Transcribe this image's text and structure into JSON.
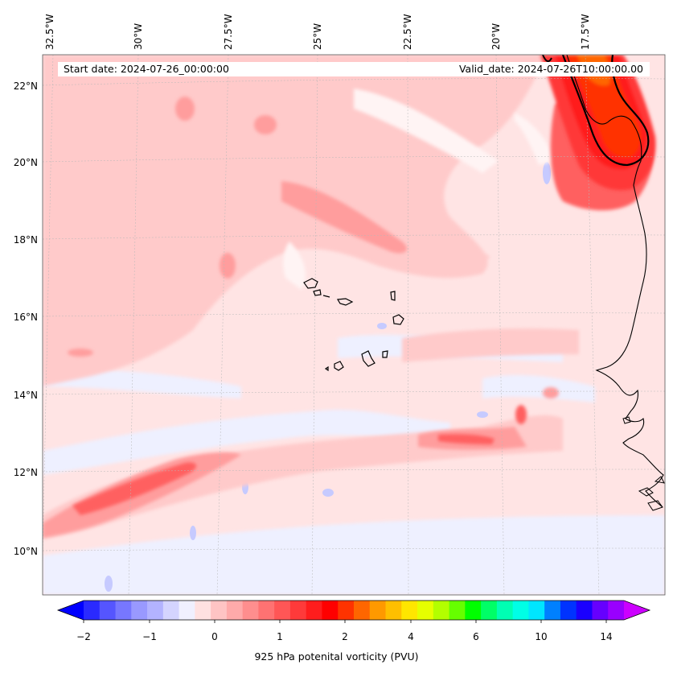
{
  "header": {
    "start_date": "Start date: 2024-07-26_00:00:00",
    "valid_date": "Valid_date: 2024-07-26T10:00:00.00"
  },
  "axes": {
    "lon_labels": [
      "32.5°W",
      "30°W",
      "27.5°W",
      "25°W",
      "22.5°W",
      "20°W",
      "17.5°W"
    ],
    "lat_labels": [
      "22°N",
      "20°N",
      "18°N",
      "16°N",
      "14°N",
      "12°N",
      "10°N"
    ]
  },
  "colorbar": {
    "title": "925 hPa potenital vorticity (PVU)",
    "tick_labels": [
      "−2",
      "−1",
      "0",
      "1",
      "2",
      "4",
      "6",
      "10",
      "14"
    ],
    "colors": [
      "#0000ff",
      "#2a2aff",
      "#5555ff",
      "#7777ff",
      "#9999ff",
      "#b3b3ff",
      "#d4d4ff",
      "#f0f0ff",
      "#ffe1e1",
      "#ffc4c4",
      "#ffaaaa",
      "#ff8e8e",
      "#ff7272",
      "#ff5656",
      "#ff3a3a",
      "#ff1d1d",
      "#ff0000",
      "#ff3300",
      "#ff6600",
      "#ff9900",
      "#ffbf00",
      "#ffe600",
      "#e6ff00",
      "#b3ff00",
      "#66ff00",
      "#00ff00",
      "#00ff66",
      "#00ffb3",
      "#00ffe6",
      "#00e6ff",
      "#0080ff",
      "#0033ff",
      "#1a00ff",
      "#6600ff",
      "#9900ff",
      "#cc00ff"
    ]
  },
  "palette": {
    "background_field": "#ffe4e4",
    "pale_blue": "#ecefff",
    "light_red": "#ffc8c8",
    "mid_red": "#ff9a9a",
    "strong_red": "#ff5050",
    "peak_orange": "#ff3300",
    "coastline": "#000000"
  }
}
